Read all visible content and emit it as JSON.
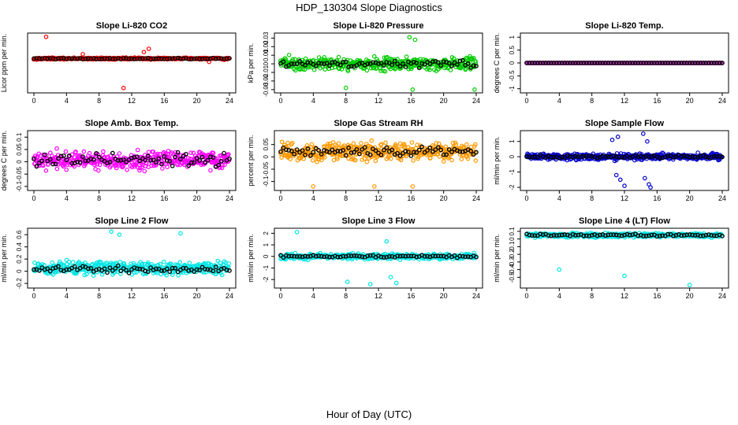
{
  "figure": {
    "title": "HDP_130304  Slope Diagnostics",
    "xlabel": "Hour of Day (UTC)"
  },
  "chart_data": [
    {
      "type": "scatter",
      "title": "Slope Li-820 CO2",
      "ylabel": "Licor ppm per min.",
      "color": "#ff0000",
      "xlim": [
        0,
        24
      ],
      "xticks": [
        0,
        4,
        8,
        12,
        16,
        20,
        24
      ],
      "ylim": [
        -15,
        11
      ],
      "yticks": [],
      "base": 0,
      "spread": 0.6,
      "outliers": [
        [
          1.5,
          10
        ],
        [
          11,
          -13.5
        ],
        [
          13.5,
          3
        ],
        [
          14.1,
          4.5
        ],
        [
          6,
          2
        ],
        [
          21.5,
          -1.5
        ]
      ],
      "hourly": {
        "base": 0,
        "spread": 0.35
      }
    },
    {
      "type": "scatter",
      "title": "Slope Li-820 Pressure",
      "ylabel": "kPa per min.",
      "color": "#00cc00",
      "xlim": [
        0,
        24
      ],
      "xticks": [
        0,
        4,
        8,
        12,
        16,
        20,
        24
      ],
      "ylim": [
        -0.032,
        0.034
      ],
      "yticks": [
        -0.03,
        -0.02,
        -0.01,
        0,
        0.01,
        0.02,
        0.03
      ],
      "base": 0,
      "spread": 0.011,
      "outliers": [
        [
          8,
          -0.028
        ],
        [
          16.2,
          -0.03
        ],
        [
          23.8,
          -0.03
        ],
        [
          16.5,
          0.028
        ],
        [
          15.8,
          0.031
        ]
      ],
      "hourly": {
        "base": 0,
        "spread": 0.006
      }
    },
    {
      "type": "scatter",
      "title": "Slope Li-820 Temp.",
      "ylabel": "degrees C per min.",
      "color": "#cc33cc",
      "xlim": [
        0,
        24
      ],
      "xticks": [
        0,
        4,
        8,
        12,
        16,
        20,
        24
      ],
      "ylim": [
        -1.1,
        1.1
      ],
      "yticks": [
        -1.0,
        -0.5,
        0.0,
        0.5,
        1.0
      ],
      "base": 0,
      "spread": 0,
      "outliers": [],
      "hourly": {
        "base": 0,
        "spread": 0
      }
    },
    {
      "type": "scatter",
      "title": "Slope Amb. Box Temp.",
      "ylabel": "degrees C per min.",
      "color": "#ff00ff",
      "xlim": [
        0,
        24
      ],
      "xticks": [
        0,
        4,
        8,
        12,
        16,
        20,
        24
      ],
      "ylim": [
        -0.11,
        0.12
      ],
      "yticks": [
        -0.1,
        -0.05,
        0.0,
        0.05,
        0.1
      ],
      "base": 0.005,
      "spread": 0.05,
      "outliers": [],
      "hourly": {
        "base": 0.01,
        "spread": 0.035
      }
    },
    {
      "type": "scatter",
      "title": "Slope Gas Stream RH",
      "ylabel": "percent per min.",
      "color": "#ff9900",
      "xlim": [
        0,
        24
      ],
      "xticks": [
        0,
        4,
        8,
        12,
        16,
        20,
        24
      ],
      "ylim": [
        -0.13,
        0.1
      ],
      "yticks": [
        -0.1,
        -0.05,
        0.0,
        0.05
      ],
      "base": 0.02,
      "spread": 0.05,
      "outliers": [
        [
          4,
          -0.12
        ],
        [
          11.5,
          -0.12
        ],
        [
          16.2,
          -0.12
        ]
      ],
      "hourly": {
        "base": 0.02,
        "spread": 0.03
      }
    },
    {
      "type": "scatter",
      "title": "Slope Sample Flow",
      "ylabel": "ml/min per min.",
      "color": "#0000cc",
      "xlim": [
        0,
        24
      ],
      "xticks": [
        0,
        4,
        8,
        12,
        16,
        20,
        24
      ],
      "ylim": [
        -2.1,
        1.6
      ],
      "yticks": [
        -2,
        -1,
        0,
        1
      ],
      "base": 0,
      "spread": 0.3,
      "outliers": [
        [
          10.5,
          1.1
        ],
        [
          11.2,
          1.3
        ],
        [
          14.3,
          1.5
        ],
        [
          14.8,
          1.0
        ],
        [
          11,
          -1.2
        ],
        [
          11.5,
          -1.5
        ],
        [
          12,
          -1.9
        ],
        [
          14.5,
          -1.4
        ],
        [
          15,
          -1.8
        ],
        [
          15.2,
          -2.0
        ]
      ],
      "hourly": {
        "base": 0,
        "spread": 0.12
      }
    },
    {
      "type": "scatter",
      "title": "Slope Line 2 Flow",
      "ylabel": "ml/min per min.",
      "color": "#00e5e5",
      "xlim": [
        0,
        24
      ],
      "xticks": [
        0,
        4,
        8,
        12,
        16,
        20,
        24
      ],
      "ylim": [
        -0.25,
        0.68
      ],
      "yticks": [
        -0.2,
        0.0,
        0.2,
        0.4,
        0.6
      ],
      "base": 0.05,
      "spread": 0.15,
      "outliers": [
        [
          9.5,
          0.65
        ],
        [
          10.5,
          0.6
        ],
        [
          18,
          0.62
        ]
      ],
      "hourly": {
        "base": 0.03,
        "spread": 0.08
      }
    },
    {
      "type": "scatter",
      "title": "Slope Line 3 Flow",
      "ylabel": "ml/min per min.",
      "color": "#00e5e5",
      "xlim": [
        0,
        24
      ],
      "xticks": [
        0,
        4,
        8,
        12,
        16,
        20,
        24
      ],
      "ylim": [
        -2.6,
        2.3
      ],
      "yticks": [
        -2,
        -1,
        0,
        1,
        2
      ],
      "base": 0,
      "spread": 0.35,
      "outliers": [
        [
          2,
          2.1
        ],
        [
          8.2,
          -2.2
        ],
        [
          11,
          -2.4
        ],
        [
          13.5,
          -1.8
        ],
        [
          14.2,
          -2.3
        ],
        [
          13,
          1.3
        ]
      ],
      "hourly": {
        "base": 0,
        "spread": 0.15
      }
    },
    {
      "type": "scatter",
      "title": "Slope Line 4 (LT) Flow",
      "ylabel": "ml/min per min.",
      "color": "#00e5e5",
      "xlim": [
        0,
        24
      ],
      "xticks": [
        0,
        4,
        8,
        12,
        16,
        20,
        24
      ],
      "ylim": [
        -0.62,
        0.12
      ],
      "yticks": [
        -0.5,
        -0.4,
        -0.3,
        -0.2,
        -0.1,
        0.0,
        0.1
      ],
      "base": 0.05,
      "spread": 0.04,
      "outliers": [
        [
          4,
          -0.4
        ],
        [
          12,
          -0.48
        ],
        [
          20,
          -0.6
        ]
      ],
      "hourly": {
        "base": 0.05,
        "spread": 0.025
      }
    }
  ]
}
